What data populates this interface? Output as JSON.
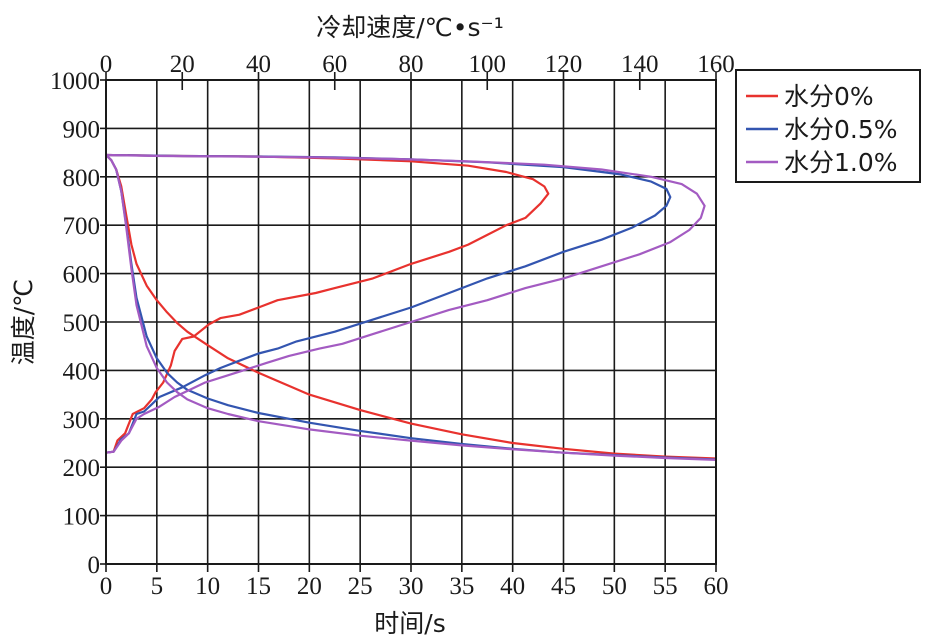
{
  "chart_data": {
    "type": "line",
    "xlabel": "时间/s",
    "x2label": "冷却速度/℃•s⁻¹",
    "ylabel": "温度/℃",
    "xlim": [
      0,
      60
    ],
    "x2lim": [
      0,
      160
    ],
    "ylim": [
      0,
      1000
    ],
    "xticks": [
      "0",
      "5",
      "10",
      "15",
      "20",
      "25",
      "30",
      "35",
      "40",
      "45",
      "50",
      "55",
      "60"
    ],
    "x2ticks": [
      "0",
      "20",
      "40",
      "60",
      "80",
      "100",
      "120",
      "140",
      "160"
    ],
    "yticks": [
      "0",
      "100",
      "200",
      "300",
      "400",
      "500",
      "600",
      "700",
      "800",
      "900",
      "1000"
    ],
    "grid": true,
    "legend_position": "top-right, outside plot",
    "series": [
      {
        "name": "水分0%",
        "color": "#e8322e",
        "cooling_curve": {
          "x_axis": "时间/s",
          "points": [
            [
              0,
              845
            ],
            [
              0.5,
              835
            ],
            [
              1,
              815
            ],
            [
              1.5,
              780
            ],
            [
              2,
              720
            ],
            [
              2.5,
              660
            ],
            [
              3,
              620
            ],
            [
              4,
              575
            ],
            [
              5,
              545
            ],
            [
              6,
              520
            ],
            [
              7,
              498
            ],
            [
              8,
              480
            ],
            [
              10,
              452
            ],
            [
              12,
              425
            ],
            [
              15,
              395
            ],
            [
              18,
              368
            ],
            [
              20,
              350
            ],
            [
              25,
              318
            ],
            [
              30,
              290
            ],
            [
              35,
              268
            ],
            [
              40,
              250
            ],
            [
              45,
              238
            ],
            [
              50,
              228
            ],
            [
              55,
              222
            ],
            [
              60,
              218
            ]
          ]
        },
        "cooling_rate_curve": {
          "x_axis": "冷却速度/℃•s⁻¹",
          "points": [
            [
              0,
              230
            ],
            [
              2,
              232
            ],
            [
              3,
              255
            ],
            [
              5,
              270
            ],
            [
              7,
              310
            ],
            [
              10,
              322
            ],
            [
              12,
              340
            ],
            [
              13,
              355
            ],
            [
              15,
              375
            ],
            [
              17,
              410
            ],
            [
              18,
              440
            ],
            [
              20,
              465
            ],
            [
              23,
              470
            ],
            [
              27,
              495
            ],
            [
              30,
              508
            ],
            [
              35,
              515
            ],
            [
              40,
              530
            ],
            [
              45,
              545
            ],
            [
              55,
              560
            ],
            [
              60,
              570
            ],
            [
              70,
              590
            ],
            [
              80,
              620
            ],
            [
              90,
              645
            ],
            [
              95,
              660
            ],
            [
              100,
              680
            ],
            [
              105,
              700
            ],
            [
              110,
              715
            ],
            [
              114,
              745
            ],
            [
              116,
              765
            ],
            [
              115,
              780
            ],
            [
              112,
              795
            ],
            [
              105,
              810
            ],
            [
              95,
              823
            ],
            [
              80,
              832
            ],
            [
              60,
              838
            ],
            [
              40,
              842
            ],
            [
              20,
              843
            ],
            [
              0,
              845
            ]
          ]
        }
      },
      {
        "name": "水分0.5%",
        "color": "#3355b0",
        "cooling_curve": {
          "x_axis": "时间/s",
          "points": [
            [
              0,
              845
            ],
            [
              0.5,
              835
            ],
            [
              1,
              815
            ],
            [
              1.5,
              770
            ],
            [
              2,
              700
            ],
            [
              2.5,
              620
            ],
            [
              3,
              550
            ],
            [
              4,
              470
            ],
            [
              5,
              425
            ],
            [
              6,
              395
            ],
            [
              7,
              375
            ],
            [
              8,
              360
            ],
            [
              10,
              342
            ],
            [
              12,
              328
            ],
            [
              15,
              312
            ],
            [
              18,
              300
            ],
            [
              20,
              292
            ],
            [
              25,
              275
            ],
            [
              30,
              260
            ],
            [
              35,
              248
            ],
            [
              40,
              238
            ],
            [
              45,
              230
            ],
            [
              50,
              225
            ],
            [
              55,
              220
            ],
            [
              60,
              216
            ]
          ]
        },
        "cooling_rate_curve": {
          "x_axis": "冷却速度/℃•s⁻¹",
          "points": [
            [
              0,
              230
            ],
            [
              2,
              232
            ],
            [
              4,
              258
            ],
            [
              6,
              270
            ],
            [
              8,
              310
            ],
            [
              10,
              315
            ],
            [
              12,
              330
            ],
            [
              14,
              345
            ],
            [
              20,
              365
            ],
            [
              26,
              390
            ],
            [
              30,
              405
            ],
            [
              35,
              420
            ],
            [
              40,
              435
            ],
            [
              45,
              445
            ],
            [
              50,
              460
            ],
            [
              60,
              480
            ],
            [
              70,
              505
            ],
            [
              80,
              530
            ],
            [
              90,
              560
            ],
            [
              100,
              590
            ],
            [
              110,
              615
            ],
            [
              120,
              645
            ],
            [
              130,
              670
            ],
            [
              138,
              695
            ],
            [
              144,
              720
            ],
            [
              147,
              740
            ],
            [
              148,
              758
            ],
            [
              147,
              775
            ],
            [
              143,
              790
            ],
            [
              135,
              805
            ],
            [
              120,
              820
            ],
            [
              100,
              830
            ],
            [
              80,
              836
            ],
            [
              60,
              840
            ],
            [
              40,
              842
            ],
            [
              20,
              843
            ],
            [
              0,
              845
            ]
          ]
        }
      },
      {
        "name": "水分1.0%",
        "color": "#a35bc2",
        "cooling_curve": {
          "x_axis": "时间/s",
          "points": [
            [
              0,
              845
            ],
            [
              0.5,
              835
            ],
            [
              1,
              815
            ],
            [
              1.5,
              770
            ],
            [
              2,
              695
            ],
            [
              2.5,
              610
            ],
            [
              3,
              535
            ],
            [
              4,
              450
            ],
            [
              5,
              405
            ],
            [
              6,
              375
            ],
            [
              7,
              355
            ],
            [
              8,
              340
            ],
            [
              10,
              322
            ],
            [
              12,
              310
            ],
            [
              15,
              295
            ],
            [
              18,
              285
            ],
            [
              20,
              278
            ],
            [
              25,
              265
            ],
            [
              30,
              255
            ],
            [
              35,
              245
            ],
            [
              40,
              237
            ],
            [
              45,
              230
            ],
            [
              50,
              224
            ],
            [
              55,
              219
            ],
            [
              60,
              215
            ]
          ]
        },
        "cooling_rate_curve": {
          "x_axis": "冷却速度/℃•s⁻¹",
          "points": [
            [
              0,
              230
            ],
            [
              2,
              232
            ],
            [
              4,
              255
            ],
            [
              6,
              270
            ],
            [
              8,
              300
            ],
            [
              10,
              310
            ],
            [
              14,
              325
            ],
            [
              18,
              345
            ],
            [
              22,
              360
            ],
            [
              26,
              375
            ],
            [
              30,
              385
            ],
            [
              36,
              400
            ],
            [
              42,
              415
            ],
            [
              48,
              430
            ],
            [
              56,
              445
            ],
            [
              62,
              455
            ],
            [
              70,
              475
            ],
            [
              80,
              500
            ],
            [
              90,
              525
            ],
            [
              100,
              545
            ],
            [
              110,
              570
            ],
            [
              120,
              590
            ],
            [
              130,
              615
            ],
            [
              140,
              640
            ],
            [
              148,
              665
            ],
            [
              153,
              690
            ],
            [
              156,
              715
            ],
            [
              157,
              740
            ],
            [
              155,
              765
            ],
            [
              151,
              785
            ],
            [
              143,
              800
            ],
            [
              130,
              815
            ],
            [
              115,
              825
            ],
            [
              95,
              832
            ],
            [
              75,
              837
            ],
            [
              55,
              840
            ],
            [
              35,
              842
            ],
            [
              15,
              843
            ],
            [
              0,
              845
            ]
          ]
        }
      }
    ]
  }
}
